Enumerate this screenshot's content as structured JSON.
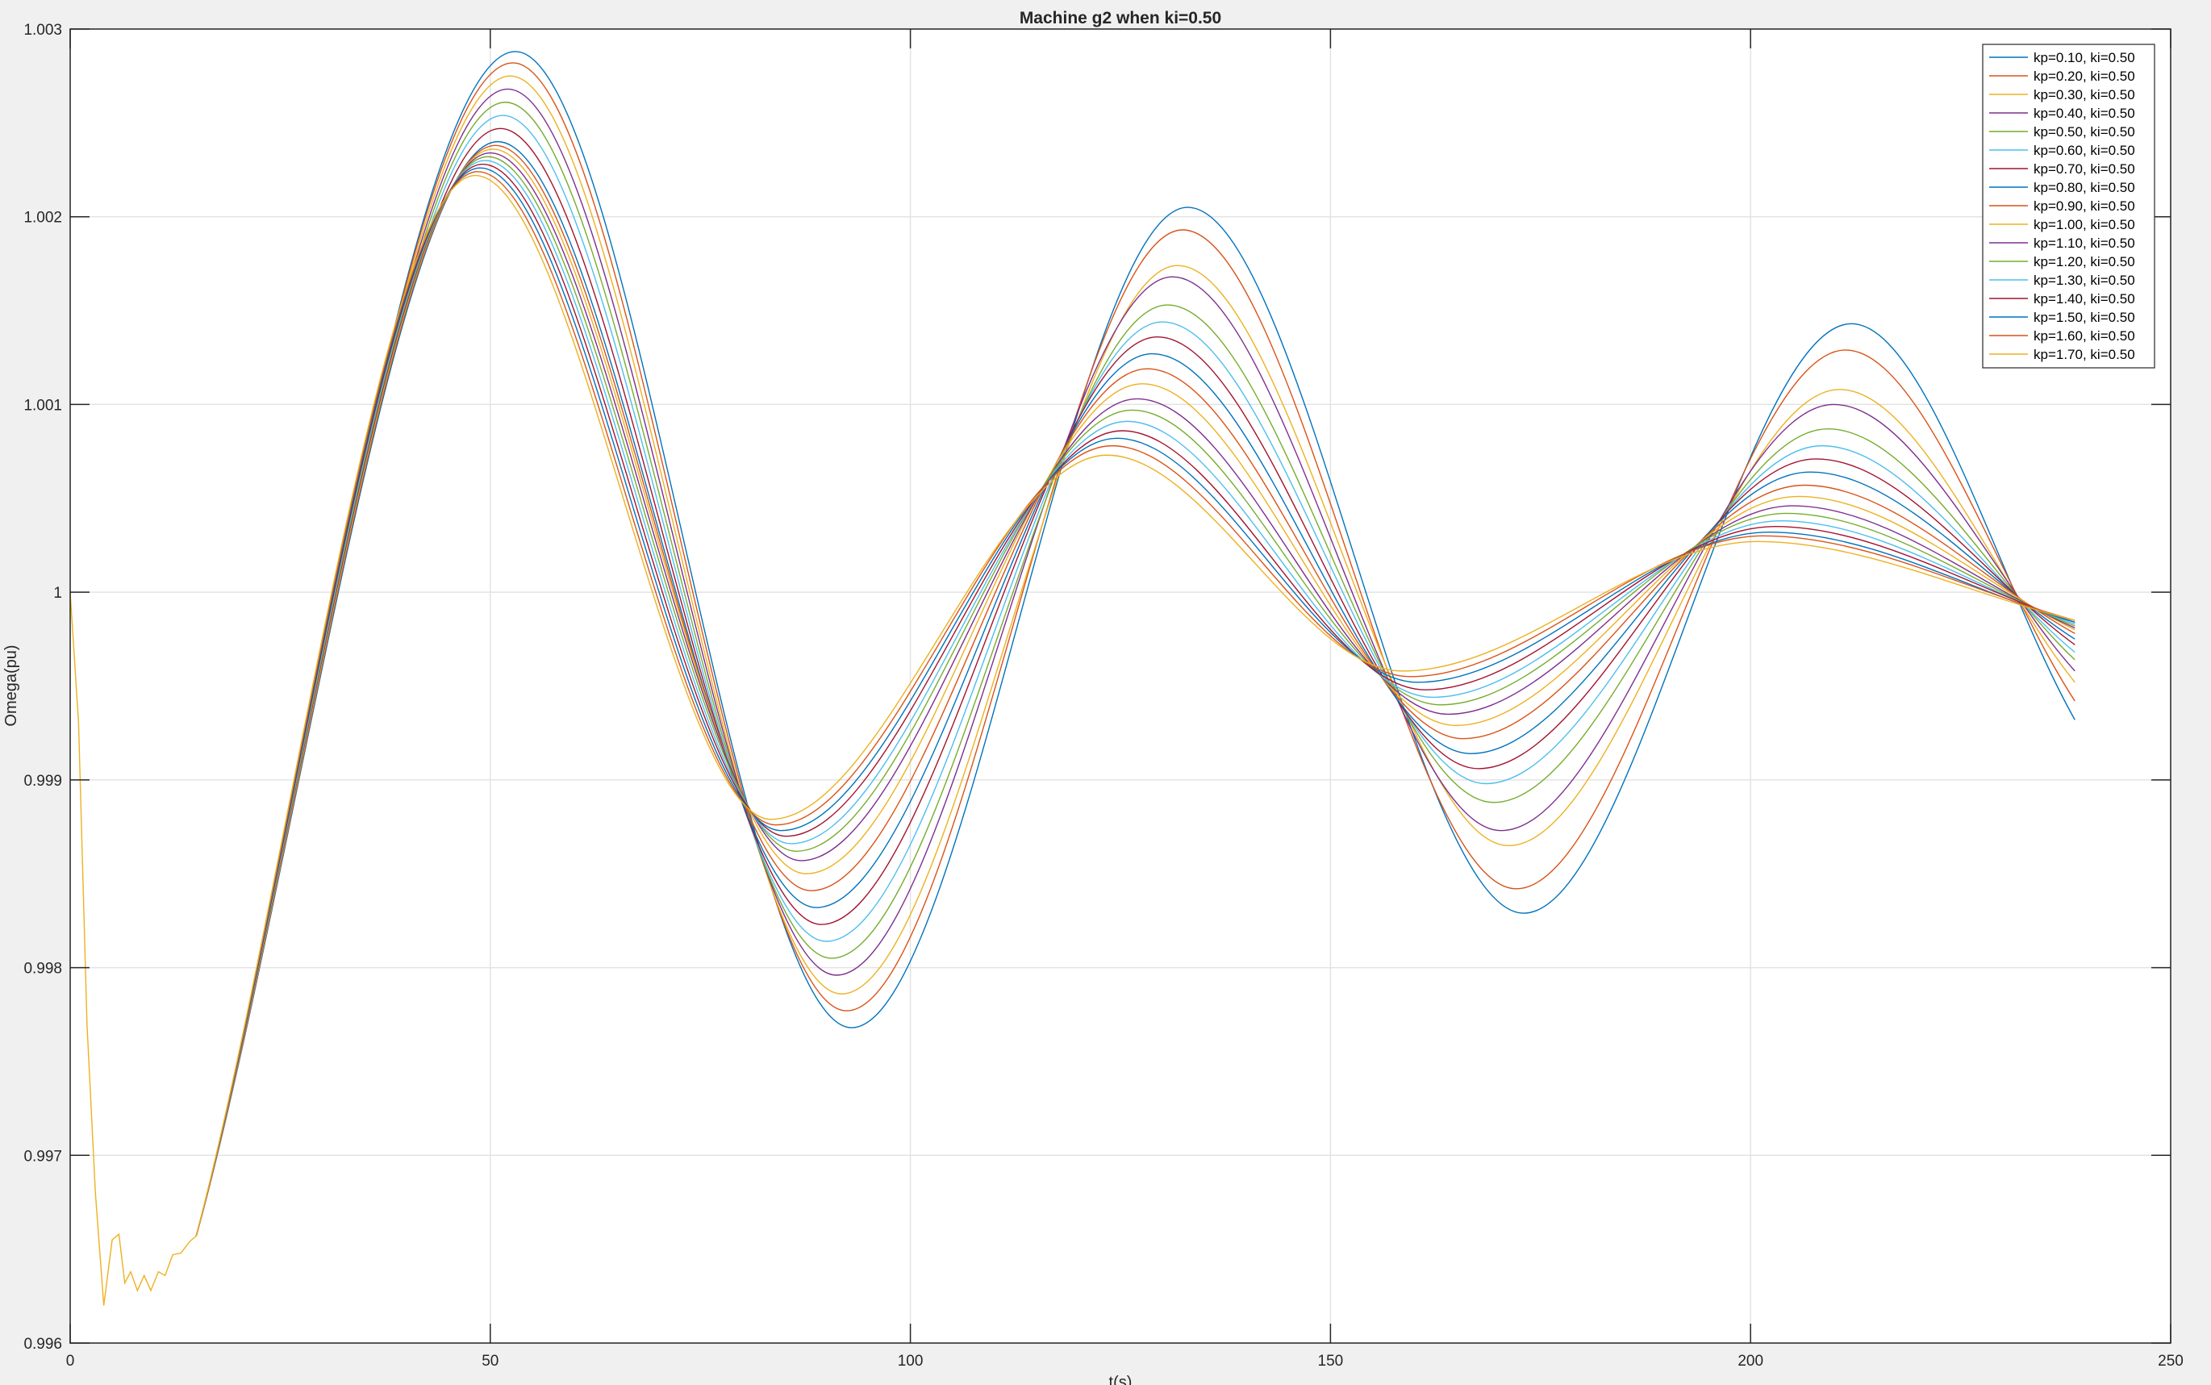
{
  "chart_data": {
    "type": "line",
    "title": "Machine g2 when ki=0.50",
    "xlabel": "t(s)",
    "ylabel": "Omega(pu)",
    "xlim": [
      0,
      250
    ],
    "ylim": [
      0.996,
      1.003
    ],
    "xticks": [
      0,
      50,
      100,
      150,
      200,
      250
    ],
    "xtick_labels": [
      "0",
      "50",
      "100",
      "150",
      "200",
      "250"
    ],
    "yticks": [
      0.996,
      0.997,
      0.998,
      0.999,
      1,
      1.001,
      1.002,
      1.003
    ],
    "ytick_labels": [
      "0.996",
      "0.997",
      "0.998",
      "0.999",
      "1",
      "1.001",
      "1.002",
      "1.003"
    ],
    "grid": true,
    "legend_position": "top-right",
    "initial_transient": {
      "x": [
        0,
        1,
        2,
        3,
        4,
        5,
        5.8,
        6.5,
        7.2,
        8,
        8.8,
        9.6,
        10.5,
        11.3,
        12.2,
        13.2,
        14.2,
        15
      ],
      "y": [
        1.0,
        0.9993,
        0.9977,
        0.9968,
        0.9962,
        0.99655,
        0.99658,
        0.99632,
        0.99638,
        0.99628,
        0.99636,
        0.99628,
        0.99638,
        0.99636,
        0.99647,
        0.99648,
        0.99654,
        0.99657
      ]
    },
    "series": [
      {
        "name": "kp=0.10, ki=0.50",
        "color": "#0072BD",
        "x": [
          15,
          53,
          93,
          133,
          173,
          212,
          238.6
        ],
        "y": [
          0.99657,
          1.00288,
          0.99768,
          1.00205,
          0.99829,
          1.00143,
          0.99932
        ]
      },
      {
        "name": "kp=0.20, ki=0.50",
        "color": "#D95319",
        "x": [
          15,
          52.7,
          92.4,
          132.4,
          172.1,
          211.3,
          238.6
        ],
        "y": [
          0.99657,
          1.00282,
          0.99777,
          1.00193,
          0.99842,
          1.00129,
          0.99942
        ]
      },
      {
        "name": "kp=0.30, ki=0.50",
        "color": "#EDB120",
        "x": [
          15,
          52.4,
          91.8,
          131.8,
          171.2,
          210.6,
          238.6
        ],
        "y": [
          0.99657,
          1.00275,
          0.99786,
          1.00174,
          0.99865,
          1.00108,
          0.99952
        ]
      },
      {
        "name": "kp=0.40, ki=0.50",
        "color": "#7E2F8E",
        "x": [
          15,
          52.1,
          91.2,
          131.2,
          170.3,
          209.9,
          238.6
        ],
        "y": [
          0.99657,
          1.00268,
          0.99796,
          1.00168,
          0.99873,
          1.001,
          0.99958
        ]
      },
      {
        "name": "kp=0.50, ki=0.50",
        "color": "#77AC30",
        "x": [
          15,
          51.8,
          90.6,
          130.6,
          169.4,
          209.2,
          238.6
        ],
        "y": [
          0.99657,
          1.00261,
          0.99805,
          1.00153,
          0.99888,
          1.00087,
          0.99964
        ]
      },
      {
        "name": "kp=0.60, ki=0.50",
        "color": "#4DBEEE",
        "x": [
          15,
          51.5,
          90,
          130,
          168.5,
          208.5,
          238.6
        ],
        "y": [
          0.99657,
          1.00254,
          0.99814,
          1.00144,
          0.99898,
          1.00078,
          0.99968
        ]
      },
      {
        "name": "kp=0.70, ki=0.50",
        "color": "#A2142F",
        "x": [
          15,
          51.2,
          89.4,
          129.4,
          167.6,
          207.8,
          238.6
        ],
        "y": [
          0.99657,
          1.00247,
          0.99823,
          1.00136,
          0.99906,
          1.00071,
          0.99972
        ]
      },
      {
        "name": "kp=0.80, ki=0.50",
        "color": "#0072BD",
        "x": [
          15,
          50.9,
          88.8,
          128.8,
          166.7,
          207.1,
          238.6
        ],
        "y": [
          0.99657,
          1.0024,
          0.99832,
          1.00127,
          0.99914,
          1.00064,
          0.99975
        ]
      },
      {
        "name": "kp=0.90, ki=0.50",
        "color": "#D95319",
        "x": [
          15,
          50.6,
          88.2,
          128.2,
          165.8,
          206.4,
          238.6
        ],
        "y": [
          0.99657,
          1.00238,
          0.99841,
          1.00119,
          0.99922,
          1.00057,
          0.99978
        ]
      },
      {
        "name": "kp=1.00, ki=0.50",
        "color": "#EDB120",
        "x": [
          15,
          50.3,
          87.6,
          127.6,
          164.9,
          205.7,
          238.6
        ],
        "y": [
          0.99657,
          1.00236,
          0.9985,
          1.00111,
          0.99929,
          1.00051,
          0.9998
        ]
      },
      {
        "name": "kp=1.10, ki=0.50",
        "color": "#7E2F8E",
        "x": [
          15,
          50,
          87,
          127,
          164,
          205,
          238.6
        ],
        "y": [
          0.99657,
          1.00234,
          0.99857,
          1.00103,
          0.99935,
          1.00046,
          0.99981
        ]
      },
      {
        "name": "kp=1.20, ki=0.50",
        "color": "#77AC30",
        "x": [
          15,
          49.7,
          86.4,
          126.4,
          163.1,
          204.3,
          238.6
        ],
        "y": [
          0.99657,
          1.00232,
          0.99862,
          1.00097,
          0.9994,
          1.00042,
          0.99982
        ]
      },
      {
        "name": "kp=1.30, ki=0.50",
        "color": "#4DBEEE",
        "x": [
          15,
          49.4,
          85.8,
          125.8,
          162.2,
          203.6,
          238.6
        ],
        "y": [
          0.99657,
          1.0023,
          0.99866,
          1.00091,
          0.99944,
          1.00038,
          0.99983
        ]
      },
      {
        "name": "kp=1.40, ki=0.50",
        "color": "#A2142F",
        "x": [
          15,
          49.1,
          85.2,
          125.2,
          161.3,
          202.9,
          238.6
        ],
        "y": [
          0.99657,
          1.00228,
          0.9987,
          1.00086,
          0.99948,
          1.00035,
          0.99984
        ]
      },
      {
        "name": "kp=1.50, ki=0.50",
        "color": "#0072BD",
        "x": [
          15,
          48.8,
          84.6,
          124.6,
          160.4,
          202.2,
          238.6
        ],
        "y": [
          0.99657,
          1.00226,
          0.99873,
          1.00082,
          0.99952,
          1.00032,
          0.99984
        ]
      },
      {
        "name": "kp=1.60, ki=0.50",
        "color": "#D95319",
        "x": [
          15,
          48.5,
          84,
          124,
          159.5,
          201.5,
          238.6
        ],
        "y": [
          0.99657,
          1.00224,
          0.99876,
          1.00078,
          0.99955,
          1.0003,
          0.99985
        ]
      },
      {
        "name": "kp=1.70, ki=0.50",
        "color": "#EDB120",
        "x": [
          15,
          48.2,
          83.4,
          123.4,
          158.6,
          200.8,
          238.6
        ],
        "y": [
          0.99657,
          1.00222,
          0.99879,
          1.00073,
          0.99958,
          1.00027,
          0.99985
        ]
      }
    ]
  }
}
